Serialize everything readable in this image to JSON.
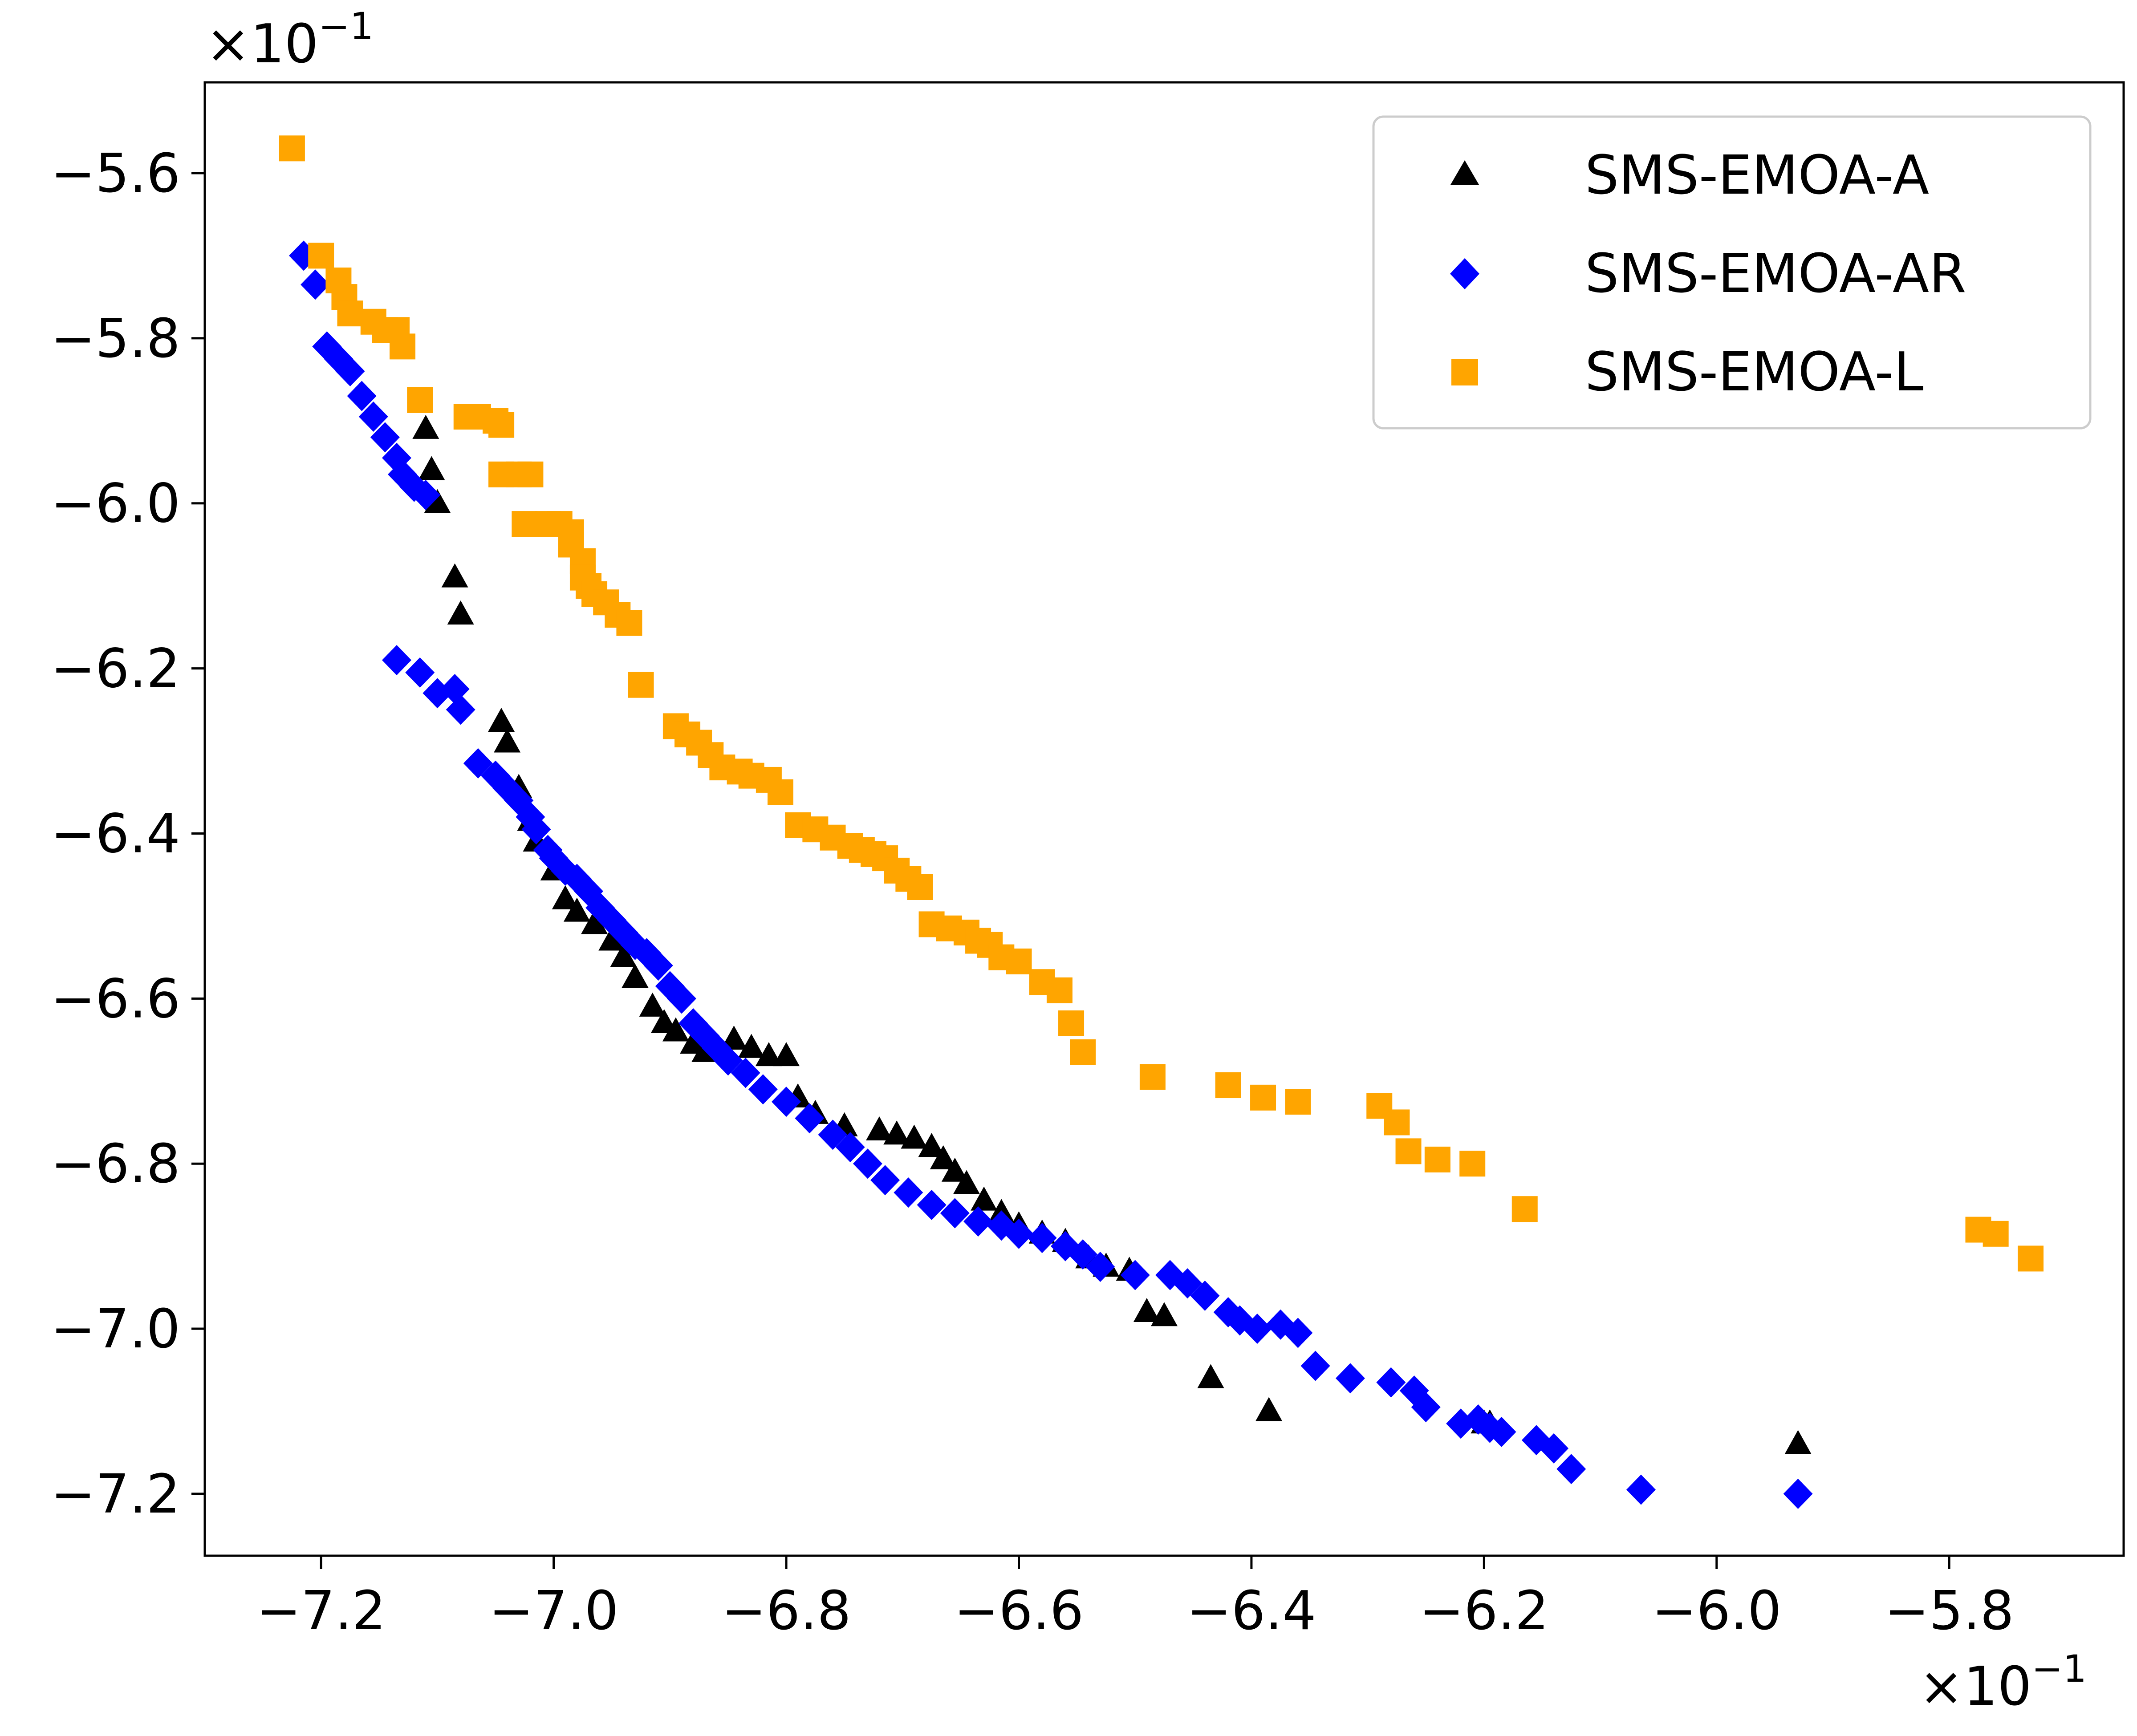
{
  "chart_data": {
    "type": "scatter",
    "title": "",
    "xlabel": "",
    "ylabel": "",
    "x_scale_label": "×10",
    "x_scale_exponent": "−1",
    "y_scale_label": "×10",
    "y_scale_exponent": "−1",
    "xlim": [
      -7.3,
      -5.65
    ],
    "ylim": [
      -7.275,
      -5.49
    ],
    "xticks": [
      -7.2,
      -7.0,
      -6.8,
      -6.6,
      -6.4,
      -6.2,
      -6.0,
      -5.8
    ],
    "xtick_labels": [
      "−7.2",
      "−7.0",
      "−6.8",
      "−6.6",
      "−6.4",
      "−6.2",
      "−6.0",
      "−5.8"
    ],
    "yticks": [
      -5.6,
      -5.8,
      -6.0,
      -6.2,
      -6.4,
      -6.6,
      -6.8,
      -7.0,
      -7.2
    ],
    "ytick_labels": [
      "−5.6",
      "−5.8",
      "−6.0",
      "−6.2",
      "−6.4",
      "−6.6",
      "−6.8",
      "−7.0",
      "−7.2"
    ],
    "grid": false,
    "legend_position": "top-right",
    "series": [
      {
        "name": "SMS-EMOA-A",
        "marker": "triangle",
        "color": "#000000",
        "points": [
          [
            -7.11,
            -5.91
          ],
          [
            -7.105,
            -5.96
          ],
          [
            -7.1,
            -6.0
          ],
          [
            -7.085,
            -6.09
          ],
          [
            -7.08,
            -6.135
          ],
          [
            -7.045,
            -6.265
          ],
          [
            -7.04,
            -6.29
          ],
          [
            -7.03,
            -6.345
          ],
          [
            -7.02,
            -6.385
          ],
          [
            -7.015,
            -6.41
          ],
          [
            -7.0,
            -6.445
          ],
          [
            -6.99,
            -6.48
          ],
          [
            -6.98,
            -6.495
          ],
          [
            -6.965,
            -6.51
          ],
          [
            -6.95,
            -6.53
          ],
          [
            -6.94,
            -6.55
          ],
          [
            -6.93,
            -6.575
          ],
          [
            -6.915,
            -6.61
          ],
          [
            -6.905,
            -6.63
          ],
          [
            -6.895,
            -6.64
          ],
          [
            -6.88,
            -6.655
          ],
          [
            -6.87,
            -6.665
          ],
          [
            -6.845,
            -6.65
          ],
          [
            -6.83,
            -6.66
          ],
          [
            -6.815,
            -6.67
          ],
          [
            -6.8,
            -6.67
          ],
          [
            -6.79,
            -6.72
          ],
          [
            -6.775,
            -6.74
          ],
          [
            -6.75,
            -6.755
          ],
          [
            -6.72,
            -6.76
          ],
          [
            -6.705,
            -6.765
          ],
          [
            -6.69,
            -6.77
          ],
          [
            -6.675,
            -6.78
          ],
          [
            -6.665,
            -6.795
          ],
          [
            -6.655,
            -6.81
          ],
          [
            -6.645,
            -6.825
          ],
          [
            -6.63,
            -6.845
          ],
          [
            -6.615,
            -6.86
          ],
          [
            -6.6,
            -6.875
          ],
          [
            -6.58,
            -6.885
          ],
          [
            -6.56,
            -6.895
          ],
          [
            -6.54,
            -6.915
          ],
          [
            -6.525,
            -6.925
          ],
          [
            -6.505,
            -6.93
          ],
          [
            -6.49,
            -6.98
          ],
          [
            -6.475,
            -6.985
          ],
          [
            -6.435,
            -7.06
          ],
          [
            -6.385,
            -7.1
          ],
          [
            -6.2,
            -7.115
          ],
          [
            -6.195,
            -7.115
          ],
          [
            -5.93,
            -7.14
          ]
        ]
      },
      {
        "name": "SMS-EMOA-AR",
        "marker": "diamond",
        "color": "#0000ff",
        "points": [
          [
            -7.215,
            -5.7
          ],
          [
            -7.205,
            -5.735
          ],
          [
            -7.195,
            -5.81
          ],
          [
            -7.185,
            -5.825
          ],
          [
            -7.175,
            -5.84
          ],
          [
            -7.165,
            -5.87
          ],
          [
            -7.155,
            -5.895
          ],
          [
            -7.145,
            -5.92
          ],
          [
            -7.135,
            -5.945
          ],
          [
            -7.13,
            -5.965
          ],
          [
            -7.12,
            -5.98
          ],
          [
            -7.11,
            -5.99
          ],
          [
            -7.135,
            -6.19
          ],
          [
            -7.115,
            -6.205
          ],
          [
            -7.1,
            -6.23
          ],
          [
            -7.085,
            -6.225
          ],
          [
            -7.08,
            -6.25
          ],
          [
            -7.065,
            -6.315
          ],
          [
            -7.05,
            -6.33
          ],
          [
            -7.04,
            -6.345
          ],
          [
            -7.03,
            -6.36
          ],
          [
            -7.02,
            -6.38
          ],
          [
            -7.015,
            -6.395
          ],
          [
            -7.005,
            -6.42
          ],
          [
            -7.0,
            -6.43
          ],
          [
            -6.99,
            -6.445
          ],
          [
            -6.98,
            -6.455
          ],
          [
            -6.97,
            -6.47
          ],
          [
            -6.96,
            -6.49
          ],
          [
            -6.95,
            -6.505
          ],
          [
            -6.94,
            -6.52
          ],
          [
            -6.93,
            -6.535
          ],
          [
            -6.92,
            -6.545
          ],
          [
            -6.91,
            -6.56
          ],
          [
            -6.9,
            -6.585
          ],
          [
            -6.89,
            -6.6
          ],
          [
            -6.88,
            -6.63
          ],
          [
            -6.87,
            -6.645
          ],
          [
            -6.86,
            -6.66
          ],
          [
            -6.85,
            -6.675
          ],
          [
            -6.835,
            -6.69
          ],
          [
            -6.82,
            -6.71
          ],
          [
            -6.8,
            -6.725
          ],
          [
            -6.78,
            -6.745
          ],
          [
            -6.76,
            -6.765
          ],
          [
            -6.745,
            -6.78
          ],
          [
            -6.73,
            -6.8
          ],
          [
            -6.715,
            -6.82
          ],
          [
            -6.695,
            -6.835
          ],
          [
            -6.675,
            -6.85
          ],
          [
            -6.655,
            -6.86
          ],
          [
            -6.635,
            -6.87
          ],
          [
            -6.615,
            -6.875
          ],
          [
            -6.6,
            -6.885
          ],
          [
            -6.58,
            -6.89
          ],
          [
            -6.56,
            -6.9
          ],
          [
            -6.545,
            -6.91
          ],
          [
            -6.53,
            -6.925
          ],
          [
            -6.5,
            -6.935
          ],
          [
            -6.47,
            -6.935
          ],
          [
            -6.455,
            -6.945
          ],
          [
            -6.44,
            -6.96
          ],
          [
            -6.42,
            -6.98
          ],
          [
            -6.41,
            -6.99
          ],
          [
            -6.395,
            -7.0
          ],
          [
            -6.375,
            -6.995
          ],
          [
            -6.36,
            -7.005
          ],
          [
            -6.345,
            -7.045
          ],
          [
            -6.315,
            -7.06
          ],
          [
            -6.28,
            -7.065
          ],
          [
            -6.26,
            -7.075
          ],
          [
            -6.25,
            -7.095
          ],
          [
            -6.22,
            -7.115
          ],
          [
            -6.205,
            -7.11
          ],
          [
            -6.195,
            -7.12
          ],
          [
            -6.185,
            -7.125
          ],
          [
            -6.155,
            -7.135
          ],
          [
            -6.14,
            -7.145
          ],
          [
            -6.125,
            -7.17
          ],
          [
            -6.065,
            -7.195
          ],
          [
            -5.93,
            -7.2
          ]
        ]
      },
      {
        "name": "SMS-EMOA-L",
        "marker": "square",
        "color": "#ffa500",
        "points": [
          [
            -7.225,
            -5.57
          ],
          [
            -7.2,
            -5.7
          ],
          [
            -7.185,
            -5.73
          ],
          [
            -7.18,
            -5.75
          ],
          [
            -7.175,
            -5.77
          ],
          [
            -7.155,
            -5.78
          ],
          [
            -7.145,
            -5.79
          ],
          [
            -7.135,
            -5.79
          ],
          [
            -7.13,
            -5.81
          ],
          [
            -7.115,
            -5.875
          ],
          [
            -7.075,
            -5.895
          ],
          [
            -7.065,
            -5.895
          ],
          [
            -7.05,
            -5.9
          ],
          [
            -7.045,
            -5.905
          ],
          [
            -7.045,
            -5.965
          ],
          [
            -7.03,
            -5.965
          ],
          [
            -7.02,
            -5.965
          ],
          [
            -7.025,
            -6.025
          ],
          [
            -7.005,
            -6.025
          ],
          [
            -6.995,
            -6.025
          ],
          [
            -6.985,
            -6.035
          ],
          [
            -6.985,
            -6.05
          ],
          [
            -6.975,
            -6.07
          ],
          [
            -6.975,
            -6.09
          ],
          [
            -6.97,
            -6.1
          ],
          [
            -6.965,
            -6.11
          ],
          [
            -6.955,
            -6.12
          ],
          [
            -6.945,
            -6.135
          ],
          [
            -6.935,
            -6.145
          ],
          [
            -6.925,
            -6.22
          ],
          [
            -6.895,
            -6.27
          ],
          [
            -6.885,
            -6.28
          ],
          [
            -6.875,
            -6.29
          ],
          [
            -6.865,
            -6.305
          ],
          [
            -6.855,
            -6.32
          ],
          [
            -6.84,
            -6.325
          ],
          [
            -6.83,
            -6.33
          ],
          [
            -6.815,
            -6.335
          ],
          [
            -6.805,
            -6.35
          ],
          [
            -6.79,
            -6.39
          ],
          [
            -6.775,
            -6.395
          ],
          [
            -6.76,
            -6.405
          ],
          [
            -6.745,
            -6.415
          ],
          [
            -6.735,
            -6.42
          ],
          [
            -6.725,
            -6.425
          ],
          [
            -6.715,
            -6.43
          ],
          [
            -6.705,
            -6.445
          ],
          [
            -6.695,
            -6.455
          ],
          [
            -6.685,
            -6.465
          ],
          [
            -6.675,
            -6.51
          ],
          [
            -6.66,
            -6.515
          ],
          [
            -6.645,
            -6.52
          ],
          [
            -6.635,
            -6.53
          ],
          [
            -6.625,
            -6.535
          ],
          [
            -6.615,
            -6.55
          ],
          [
            -6.6,
            -6.555
          ],
          [
            -6.58,
            -6.58
          ],
          [
            -6.565,
            -6.59
          ],
          [
            -6.555,
            -6.63
          ],
          [
            -6.545,
            -6.665
          ],
          [
            -6.485,
            -6.695
          ],
          [
            -6.42,
            -6.705
          ],
          [
            -6.39,
            -6.72
          ],
          [
            -6.36,
            -6.725
          ],
          [
            -6.29,
            -6.73
          ],
          [
            -6.275,
            -6.75
          ],
          [
            -6.265,
            -6.785
          ],
          [
            -6.24,
            -6.795
          ],
          [
            -6.21,
            -6.8
          ],
          [
            -6.165,
            -6.855
          ],
          [
            -5.775,
            -6.88
          ],
          [
            -5.76,
            -6.885
          ],
          [
            -5.73,
            -6.915
          ]
        ]
      }
    ]
  }
}
